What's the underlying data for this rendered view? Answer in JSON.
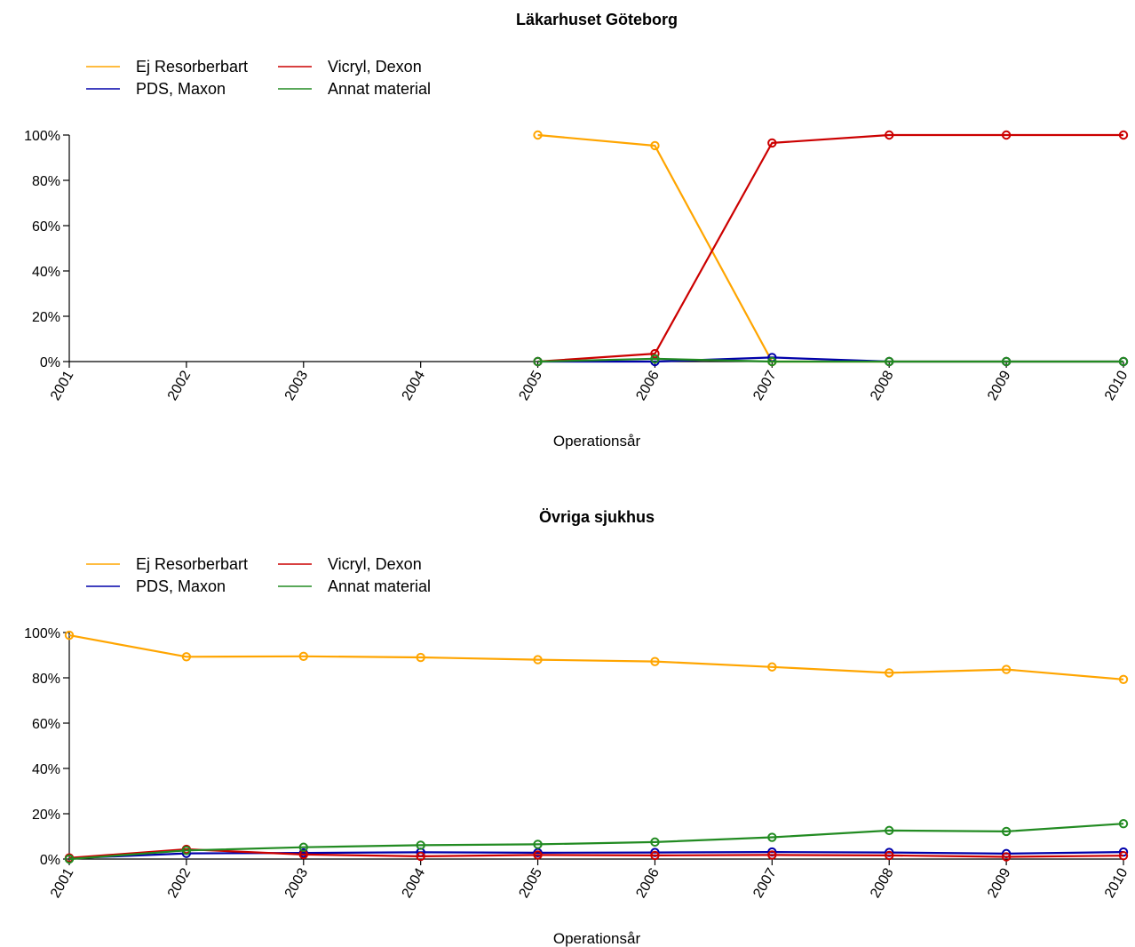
{
  "chart_data": [
    {
      "type": "line",
      "title": "Läkarhuset Göteborg",
      "xlabel": "Operationsår",
      "ylabel": "",
      "x": [
        "2001",
        "2002",
        "2003",
        "2004",
        "2005",
        "2006",
        "2007",
        "2008",
        "2009",
        "2010"
      ],
      "y_ticks": [
        "0%",
        "20%",
        "40%",
        "60%",
        "80%",
        "100%"
      ],
      "ylim": [
        0,
        100
      ],
      "legend_position": "top-left",
      "series": [
        {
          "name": "Ej Resorberbart",
          "color": "#FFA500",
          "values": [
            null,
            null,
            null,
            null,
            100,
            95.3,
            0,
            0,
            0,
            0
          ]
        },
        {
          "name": "PDS, Maxon",
          "color": "#0000AA",
          "values": [
            null,
            null,
            null,
            null,
            0,
            0,
            1.8,
            0,
            0,
            0
          ]
        },
        {
          "name": "Vicryl, Dexon",
          "color": "#CC0000",
          "values": [
            null,
            null,
            null,
            null,
            0,
            3.5,
            96.5,
            100,
            100,
            100
          ]
        },
        {
          "name": "Annat material",
          "color": "#228B22",
          "values": [
            null,
            null,
            null,
            null,
            0,
            1.2,
            0,
            0,
            0,
            0
          ]
        }
      ]
    },
    {
      "type": "line",
      "title": "Övriga sjukhus",
      "xlabel": "Operationsår",
      "ylabel": "",
      "x": [
        "2001",
        "2002",
        "2003",
        "2004",
        "2005",
        "2006",
        "2007",
        "2008",
        "2009",
        "2010"
      ],
      "y_ticks": [
        "0%",
        "20%",
        "40%",
        "60%",
        "80%",
        "100%"
      ],
      "ylim": [
        0,
        100
      ],
      "legend_position": "top-left",
      "series": [
        {
          "name": "Ej Resorberbart",
          "color": "#FFA500",
          "values": [
            98.8,
            89.3,
            89.5,
            89.0,
            88.0,
            87.2,
            84.8,
            82.2,
            83.7,
            79.3
          ]
        },
        {
          "name": "PDS, Maxon",
          "color": "#0000AA",
          "values": [
            0.3,
            2.5,
            2.7,
            3.0,
            2.8,
            2.9,
            3.1,
            2.9,
            2.4,
            3.1
          ]
        },
        {
          "name": "Vicryl, Dexon",
          "color": "#CC0000",
          "values": [
            0.5,
            4.3,
            2.0,
            1.2,
            1.8,
            1.6,
            1.8,
            1.6,
            1.0,
            1.5
          ]
        },
        {
          "name": "Annat material",
          "color": "#228B22",
          "values": [
            0,
            3.8,
            5.2,
            6.1,
            6.5,
            7.5,
            9.6,
            12.6,
            12.2,
            15.6
          ]
        }
      ]
    }
  ]
}
